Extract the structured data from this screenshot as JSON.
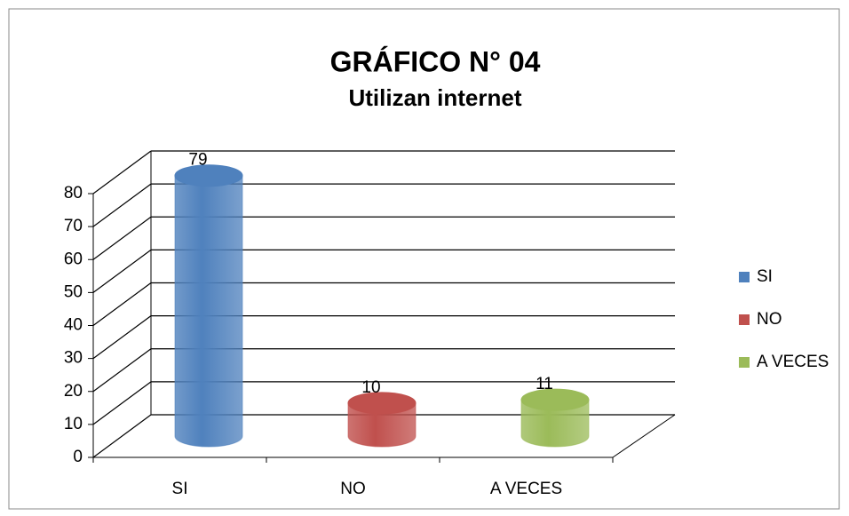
{
  "chart_data": {
    "type": "bar",
    "title": "GRÁFICO N° 04",
    "subtitle": "Utilizan internet",
    "categories": [
      "SI",
      "NO",
      "A VECES"
    ],
    "values": [
      79,
      10,
      11
    ],
    "colors": [
      "#4f81bd",
      "#c0504d",
      "#9bbb59"
    ],
    "ylim": [
      0,
      80
    ],
    "yticks": [
      0,
      10,
      20,
      30,
      40,
      50,
      60,
      70,
      80
    ],
    "grid": true,
    "legend": "right"
  }
}
